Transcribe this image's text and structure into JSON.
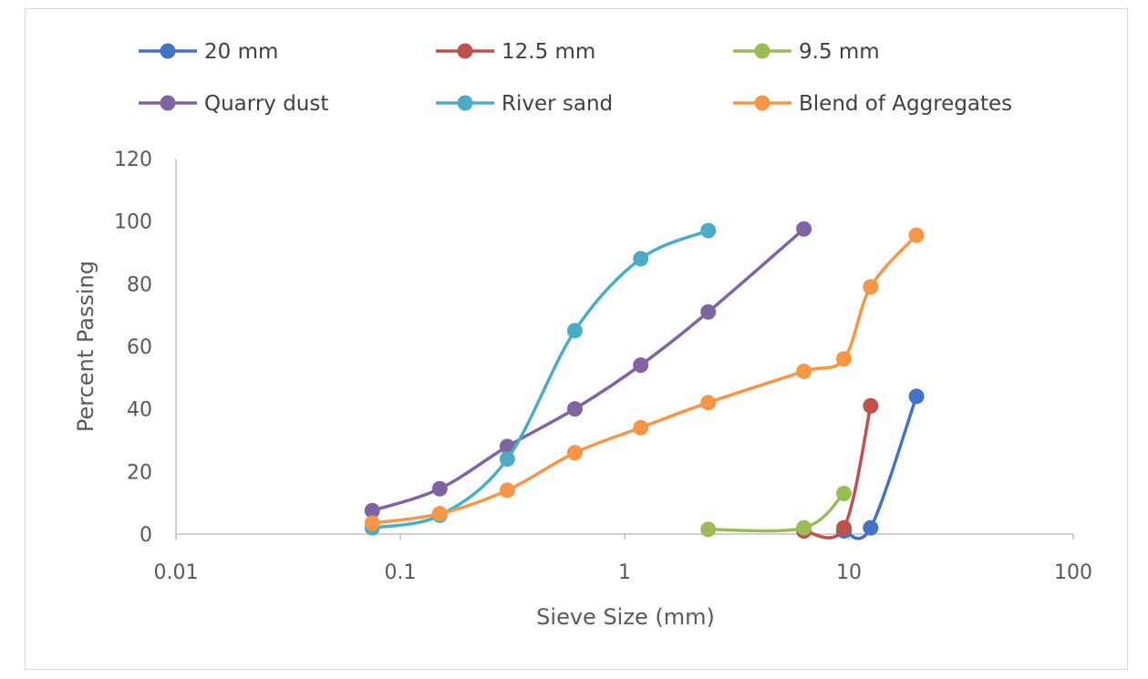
{
  "chart_data": {
    "type": "line",
    "title": "",
    "xlabel": "Sieve Size (mm)",
    "ylabel": "Percent Passing",
    "x_scale": "log",
    "xlim": [
      0.01,
      100
    ],
    "ylim": [
      0,
      120
    ],
    "x_ticks": [
      "0.01",
      "0.1",
      "1",
      "10",
      "100"
    ],
    "y_ticks": [
      "0",
      "20",
      "40",
      "60",
      "80",
      "100",
      "120"
    ],
    "grid": false,
    "legend_position": "top",
    "series": [
      {
        "name": "20 mm",
        "color": "#4472c4",
        "points": [
          [
            9.5,
            1
          ],
          [
            12.5,
            2
          ],
          [
            20,
            44
          ]
        ]
      },
      {
        "name": "12.5 mm",
        "color": "#c0504d",
        "points": [
          [
            6.3,
            1
          ],
          [
            9.5,
            2
          ],
          [
            12.5,
            41
          ]
        ]
      },
      {
        "name": "9.5 mm",
        "color": "#9bbb59",
        "points": [
          [
            2.36,
            1.5
          ],
          [
            6.3,
            2
          ],
          [
            9.5,
            13
          ]
        ]
      },
      {
        "name": "Quarry dust",
        "color": "#8064a2",
        "points": [
          [
            0.075,
            7.5
          ],
          [
            0.15,
            14.5
          ],
          [
            0.3,
            28
          ],
          [
            0.6,
            40
          ],
          [
            1.18,
            54
          ],
          [
            2.36,
            71
          ],
          [
            6.3,
            97.5
          ]
        ]
      },
      {
        "name": "River sand",
        "color": "#4bacc6",
        "points": [
          [
            0.075,
            2
          ],
          [
            0.15,
            6
          ],
          [
            0.3,
            24
          ],
          [
            0.6,
            65
          ],
          [
            1.18,
            88
          ],
          [
            2.36,
            97
          ]
        ]
      },
      {
        "name": "Blend of Aggregates",
        "color": "#f79646",
        "points": [
          [
            0.075,
            3.5
          ],
          [
            0.15,
            6.5
          ],
          [
            0.3,
            14
          ],
          [
            0.6,
            26
          ],
          [
            1.18,
            34
          ],
          [
            2.36,
            42
          ],
          [
            6.3,
            52
          ],
          [
            9.5,
            56
          ],
          [
            12.5,
            79
          ],
          [
            20,
            95.5
          ]
        ]
      }
    ]
  }
}
